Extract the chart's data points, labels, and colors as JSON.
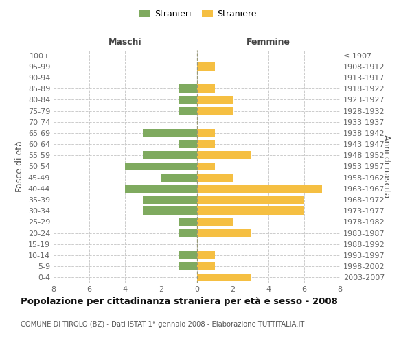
{
  "age_groups": [
    "0-4",
    "5-9",
    "10-14",
    "15-19",
    "20-24",
    "25-29",
    "30-34",
    "35-39",
    "40-44",
    "45-49",
    "50-54",
    "55-59",
    "60-64",
    "65-69",
    "70-74",
    "75-79",
    "80-84",
    "85-89",
    "90-94",
    "95-99",
    "100+"
  ],
  "birth_years": [
    "2003-2007",
    "1998-2002",
    "1993-1997",
    "1988-1992",
    "1983-1987",
    "1978-1982",
    "1973-1977",
    "1968-1972",
    "1963-1967",
    "1958-1962",
    "1953-1957",
    "1948-1952",
    "1943-1947",
    "1938-1942",
    "1933-1937",
    "1928-1932",
    "1923-1927",
    "1918-1922",
    "1913-1917",
    "1908-1912",
    "≤ 1907"
  ],
  "males": [
    0,
    1,
    1,
    0,
    1,
    1,
    3,
    3,
    4,
    2,
    4,
    3,
    1,
    3,
    0,
    1,
    1,
    1,
    0,
    0,
    0
  ],
  "females": [
    3,
    1,
    1,
    0,
    3,
    2,
    6,
    6,
    7,
    2,
    1,
    3,
    1,
    1,
    0,
    2,
    2,
    1,
    0,
    1,
    0
  ],
  "male_color": "#7faa5f",
  "female_color": "#f5bf42",
  "grid_color": "#cccccc",
  "title": "Popolazione per cittadinanza straniera per età e sesso - 2008",
  "subtitle": "COMUNE DI TIROLO (BZ) - Dati ISTAT 1° gennaio 2008 - Elaborazione TUTTITALIA.IT",
  "xlabel_left": "Maschi",
  "xlabel_right": "Femmine",
  "ylabel_left": "Fasce di età",
  "ylabel_right": "Anni di nascita",
  "legend_male": "Stranieri",
  "legend_female": "Straniere",
  "xlim": 8,
  "bg_color": "#ffffff"
}
